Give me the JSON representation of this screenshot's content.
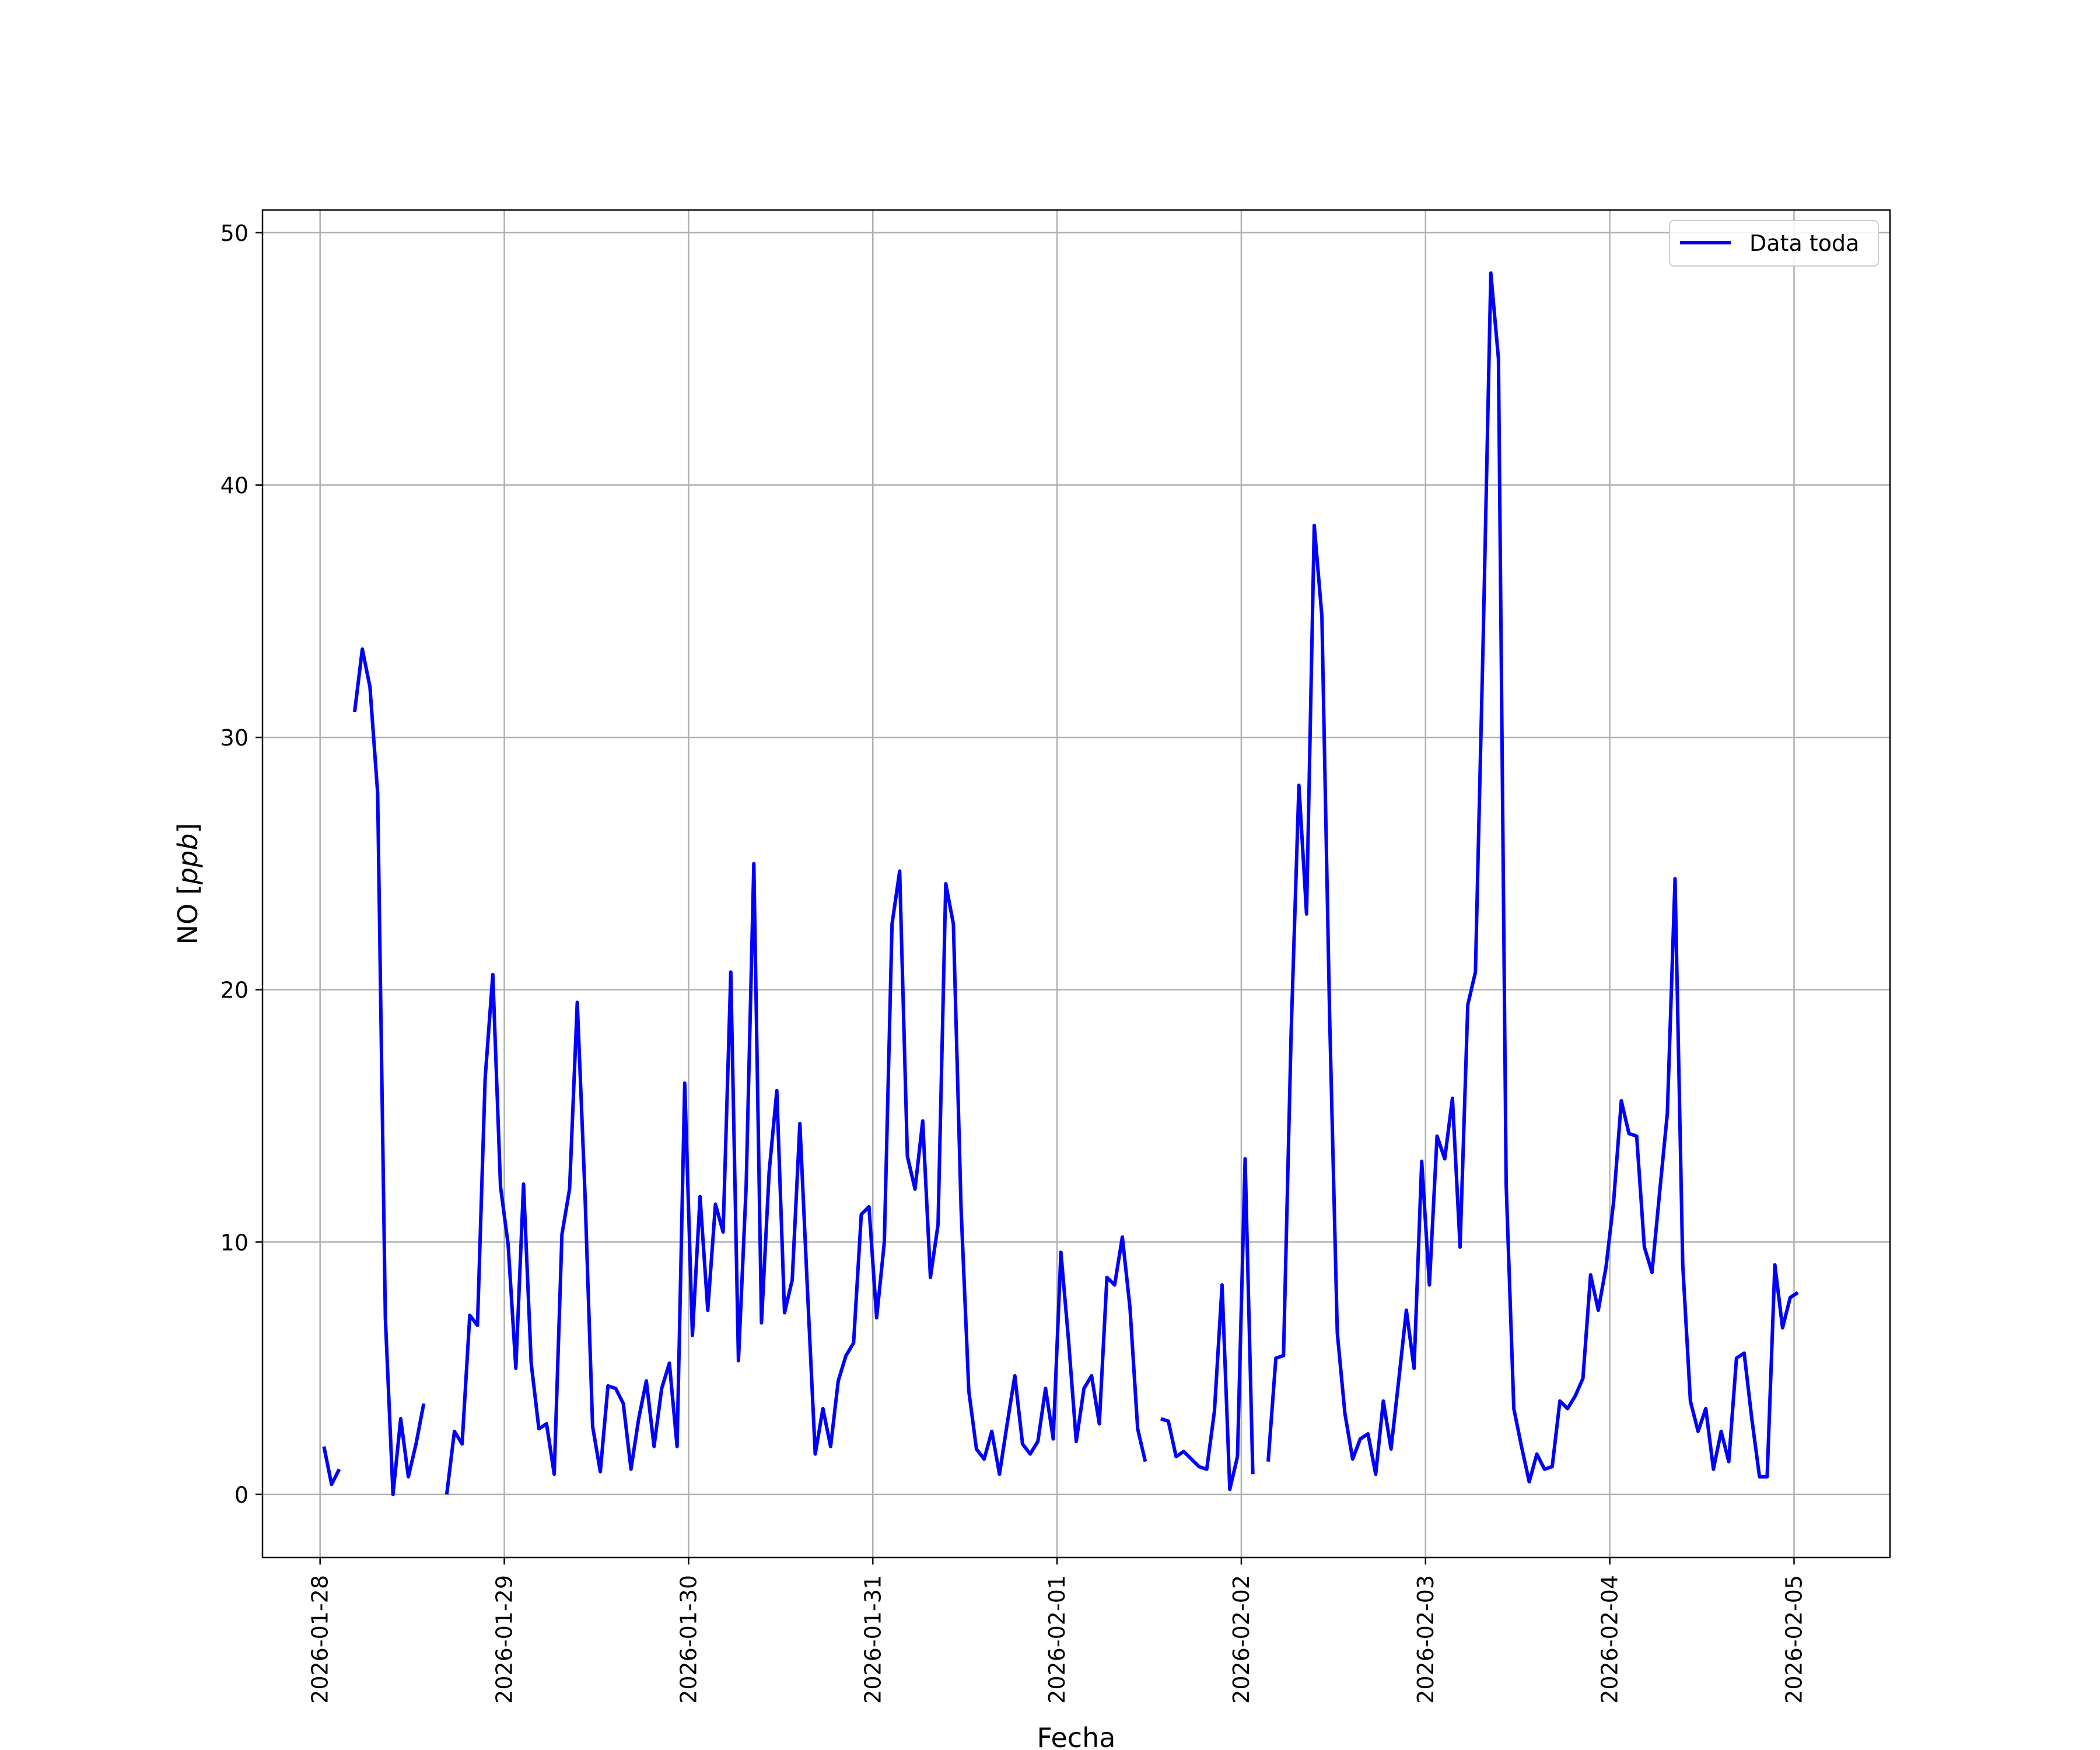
{
  "chart_data": {
    "type": "line",
    "xlabel": "Fecha",
    "ylabel_prefix": "NO [",
    "ylabel_unit": "ppb",
    "ylabel_suffix": "]",
    "xlim": [
      "2026-01-27T16:30",
      "2026-02-05T12:30"
    ],
    "ylim": [
      -2.5,
      50.9
    ],
    "x_ticks": [
      "2026-01-28",
      "2026-01-29",
      "2026-01-30",
      "2026-01-31",
      "2026-02-01",
      "2026-02-02",
      "2026-02-03",
      "2026-02-04",
      "2026-02-05"
    ],
    "y_ticks": [
      0,
      10,
      20,
      30,
      40,
      50
    ],
    "grid": true,
    "legend_position": "upper right",
    "colors": {
      "series": "#0000ff",
      "grid": "#b0b0b0",
      "axes": "#000000"
    },
    "series": [
      {
        "name": "Data toda",
        "points": [
          [
            "2026-01-28T00:30",
            1.9
          ],
          [
            "2026-01-28T01:30",
            0.4
          ],
          [
            "2026-01-28T02:30",
            1.0
          ],
          [
            "2026-01-28T03:30",
            null
          ],
          [
            "2026-01-28T04:30",
            31.0
          ],
          [
            "2026-01-28T05:30",
            33.5
          ],
          [
            "2026-01-28T06:30",
            32.0
          ],
          [
            "2026-01-28T07:30",
            27.8
          ],
          [
            "2026-01-28T08:30",
            7.0
          ],
          [
            "2026-01-28T09:30",
            0.0
          ],
          [
            "2026-01-28T10:30",
            3.0
          ],
          [
            "2026-01-28T11:30",
            0.7
          ],
          [
            "2026-01-28T12:30",
            2.0
          ],
          [
            "2026-01-28T13:30",
            3.6
          ],
          [
            "2026-01-28T14:30",
            null
          ],
          [
            "2026-01-28T15:30",
            null
          ],
          [
            "2026-01-28T16:30",
            0.0
          ],
          [
            "2026-01-28T17:30",
            2.5
          ],
          [
            "2026-01-28T18:30",
            2.0
          ],
          [
            "2026-01-28T19:30",
            7.1
          ],
          [
            "2026-01-28T20:30",
            6.7
          ],
          [
            "2026-01-28T21:30",
            16.5
          ],
          [
            "2026-01-28T22:30",
            20.6
          ],
          [
            "2026-01-28T23:30",
            12.2
          ],
          [
            "2026-01-29T00:30",
            9.9
          ],
          [
            "2026-01-29T01:30",
            5.0
          ],
          [
            "2026-01-29T02:30",
            12.3
          ],
          [
            "2026-01-29T03:30",
            5.2
          ],
          [
            "2026-01-29T04:30",
            2.6
          ],
          [
            "2026-01-29T05:30",
            2.8
          ],
          [
            "2026-01-29T06:30",
            0.8
          ],
          [
            "2026-01-29T07:30",
            10.3
          ],
          [
            "2026-01-29T08:30",
            12.1
          ],
          [
            "2026-01-29T09:30",
            19.5
          ],
          [
            "2026-01-29T10:30",
            12.0
          ],
          [
            "2026-01-29T11:30",
            2.7
          ],
          [
            "2026-01-29T12:30",
            0.9
          ],
          [
            "2026-01-29T13:30",
            4.3
          ],
          [
            "2026-01-29T14:30",
            4.2
          ],
          [
            "2026-01-29T15:30",
            3.6
          ],
          [
            "2026-01-29T16:30",
            1.0
          ],
          [
            "2026-01-29T17:30",
            3.0
          ],
          [
            "2026-01-29T18:30",
            4.5
          ],
          [
            "2026-01-29T19:30",
            1.9
          ],
          [
            "2026-01-29T20:30",
            4.2
          ],
          [
            "2026-01-29T21:30",
            5.2
          ],
          [
            "2026-01-29T22:30",
            1.9
          ],
          [
            "2026-01-29T23:30",
            16.3
          ],
          [
            "2026-01-30T00:30",
            6.3
          ],
          [
            "2026-01-30T01:30",
            11.8
          ],
          [
            "2026-01-30T02:30",
            7.3
          ],
          [
            "2026-01-30T03:30",
            11.5
          ],
          [
            "2026-01-30T04:30",
            10.4
          ],
          [
            "2026-01-30T05:30",
            20.7
          ],
          [
            "2026-01-30T06:30",
            5.3
          ],
          [
            "2026-01-30T07:30",
            12.2
          ],
          [
            "2026-01-30T08:30",
            25.0
          ],
          [
            "2026-01-30T09:30",
            6.8
          ],
          [
            "2026-01-30T10:30",
            12.8
          ],
          [
            "2026-01-30T11:30",
            16.0
          ],
          [
            "2026-01-30T12:30",
            7.2
          ],
          [
            "2026-01-30T13:30",
            8.5
          ],
          [
            "2026-01-30T14:30",
            14.7
          ],
          [
            "2026-01-30T15:30",
            8.0
          ],
          [
            "2026-01-30T16:30",
            1.6
          ],
          [
            "2026-01-30T17:30",
            3.4
          ],
          [
            "2026-01-30T18:30",
            1.9
          ],
          [
            "2026-01-30T19:30",
            4.5
          ],
          [
            "2026-01-30T20:30",
            5.5
          ],
          [
            "2026-01-30T21:30",
            6.0
          ],
          [
            "2026-01-30T22:30",
            11.1
          ],
          [
            "2026-01-30T23:30",
            11.4
          ],
          [
            "2026-01-31T00:30",
            7.0
          ],
          [
            "2026-01-31T01:30",
            10.0
          ],
          [
            "2026-01-31T02:30",
            22.6
          ],
          [
            "2026-01-31T03:30",
            24.7
          ],
          [
            "2026-01-31T04:30",
            13.4
          ],
          [
            "2026-01-31T05:30",
            12.1
          ],
          [
            "2026-01-31T06:30",
            14.8
          ],
          [
            "2026-01-31T07:30",
            8.6
          ],
          [
            "2026-01-31T08:30",
            10.7
          ],
          [
            "2026-01-31T09:30",
            24.2
          ],
          [
            "2026-01-31T10:30",
            22.6
          ],
          [
            "2026-01-31T11:30",
            11.3
          ],
          [
            "2026-01-31T12:30",
            4.1
          ],
          [
            "2026-01-31T13:30",
            1.8
          ],
          [
            "2026-01-31T14:30",
            1.4
          ],
          [
            "2026-01-31T15:30",
            2.5
          ],
          [
            "2026-01-31T16:30",
            0.8
          ],
          [
            "2026-01-31T17:30",
            2.8
          ],
          [
            "2026-01-31T18:30",
            4.7
          ],
          [
            "2026-01-31T19:30",
            2.0
          ],
          [
            "2026-01-31T20:30",
            1.6
          ],
          [
            "2026-01-31T21:30",
            2.1
          ],
          [
            "2026-01-31T22:30",
            4.2
          ],
          [
            "2026-01-31T23:30",
            2.2
          ],
          [
            "2026-02-01T00:30",
            9.6
          ],
          [
            "2026-02-01T01:30",
            6.1
          ],
          [
            "2026-02-01T02:30",
            2.1
          ],
          [
            "2026-02-01T03:30",
            4.2
          ],
          [
            "2026-02-01T04:30",
            4.7
          ],
          [
            "2026-02-01T05:30",
            2.8
          ],
          [
            "2026-02-01T06:30",
            8.6
          ],
          [
            "2026-02-01T07:30",
            8.3
          ],
          [
            "2026-02-01T08:30",
            10.2
          ],
          [
            "2026-02-01T09:30",
            7.4
          ],
          [
            "2026-02-01T10:30",
            2.6
          ],
          [
            "2026-02-01T11:30",
            1.3
          ],
          [
            "2026-02-01T12:30",
            null
          ],
          [
            "2026-02-01T13:30",
            3.0
          ],
          [
            "2026-02-01T14:30",
            2.9
          ],
          [
            "2026-02-01T15:30",
            1.5
          ],
          [
            "2026-02-01T16:30",
            1.7
          ],
          [
            "2026-02-01T17:30",
            1.4
          ],
          [
            "2026-02-01T18:30",
            1.1
          ],
          [
            "2026-02-01T19:30",
            1.0
          ],
          [
            "2026-02-01T20:30",
            3.3
          ],
          [
            "2026-02-01T21:30",
            8.3
          ],
          [
            "2026-02-01T22:30",
            0.2
          ],
          [
            "2026-02-01T23:30",
            1.5
          ],
          [
            "2026-02-02T00:30",
            13.3
          ],
          [
            "2026-02-02T01:30",
            0.8
          ],
          [
            "2026-02-02T02:30",
            null
          ],
          [
            "2026-02-02T03:30",
            1.3
          ],
          [
            "2026-02-02T04:30",
            5.4
          ],
          [
            "2026-02-02T05:30",
            5.5
          ],
          [
            "2026-02-02T06:30",
            18.4
          ],
          [
            "2026-02-02T07:30",
            28.1
          ],
          [
            "2026-02-02T08:30",
            23.0
          ],
          [
            "2026-02-02T09:30",
            38.4
          ],
          [
            "2026-02-02T10:30",
            34.8
          ],
          [
            "2026-02-02T11:30",
            19.0
          ],
          [
            "2026-02-02T12:30",
            6.4
          ],
          [
            "2026-02-02T13:30",
            3.2
          ],
          [
            "2026-02-02T14:30",
            1.4
          ],
          [
            "2026-02-02T15:30",
            2.2
          ],
          [
            "2026-02-02T16:30",
            2.4
          ],
          [
            "2026-02-02T17:30",
            0.8
          ],
          [
            "2026-02-02T18:30",
            3.7
          ],
          [
            "2026-02-02T19:30",
            1.8
          ],
          [
            "2026-02-02T20:30",
            4.5
          ],
          [
            "2026-02-02T21:30",
            7.3
          ],
          [
            "2026-02-02T22:30",
            5.0
          ],
          [
            "2026-02-02T23:30",
            13.2
          ],
          [
            "2026-02-03T00:30",
            8.3
          ],
          [
            "2026-02-03T01:30",
            14.2
          ],
          [
            "2026-02-03T02:30",
            13.3
          ],
          [
            "2026-02-03T03:30",
            15.7
          ],
          [
            "2026-02-03T04:30",
            9.8
          ],
          [
            "2026-02-03T05:30",
            19.4
          ],
          [
            "2026-02-03T06:30",
            20.7
          ],
          [
            "2026-02-03T07:30",
            33.8
          ],
          [
            "2026-02-03T08:30",
            48.4
          ],
          [
            "2026-02-03T09:30",
            45.0
          ],
          [
            "2026-02-03T10:30",
            12.3
          ],
          [
            "2026-02-03T11:30",
            3.4
          ],
          [
            "2026-02-03T12:30",
            1.9
          ],
          [
            "2026-02-03T13:30",
            0.5
          ],
          [
            "2026-02-03T14:30",
            1.6
          ],
          [
            "2026-02-03T15:30",
            1.0
          ],
          [
            "2026-02-03T16:30",
            1.1
          ],
          [
            "2026-02-03T17:30",
            3.7
          ],
          [
            "2026-02-03T18:30",
            3.4
          ],
          [
            "2026-02-03T19:30",
            3.9
          ],
          [
            "2026-02-03T20:30",
            4.6
          ],
          [
            "2026-02-03T21:30",
            8.7
          ],
          [
            "2026-02-03T22:30",
            7.3
          ],
          [
            "2026-02-03T23:30",
            9.0
          ],
          [
            "2026-02-04T00:30",
            11.6
          ],
          [
            "2026-02-04T01:30",
            15.6
          ],
          [
            "2026-02-04T02:30",
            14.3
          ],
          [
            "2026-02-04T03:30",
            14.2
          ],
          [
            "2026-02-04T04:30",
            9.8
          ],
          [
            "2026-02-04T05:30",
            8.8
          ],
          [
            "2026-02-04T06:30",
            12.0
          ],
          [
            "2026-02-04T07:30",
            15.1
          ],
          [
            "2026-02-04T08:30",
            24.4
          ],
          [
            "2026-02-04T09:30",
            9.1
          ],
          [
            "2026-02-04T10:30",
            3.7
          ],
          [
            "2026-02-04T11:30",
            2.5
          ],
          [
            "2026-02-04T12:30",
            3.4
          ],
          [
            "2026-02-04T13:30",
            1.0
          ],
          [
            "2026-02-04T14:30",
            2.5
          ],
          [
            "2026-02-04T15:30",
            1.3
          ],
          [
            "2026-02-04T16:30",
            5.4
          ],
          [
            "2026-02-04T17:30",
            5.6
          ],
          [
            "2026-02-04T18:30",
            3.0
          ],
          [
            "2026-02-04T19:30",
            0.7
          ],
          [
            "2026-02-04T20:30",
            0.7
          ],
          [
            "2026-02-04T21:30",
            9.1
          ],
          [
            "2026-02-04T22:30",
            6.6
          ],
          [
            "2026-02-04T23:30",
            7.8
          ],
          [
            "2026-02-05T00:30",
            8.0
          ]
        ]
      }
    ]
  }
}
